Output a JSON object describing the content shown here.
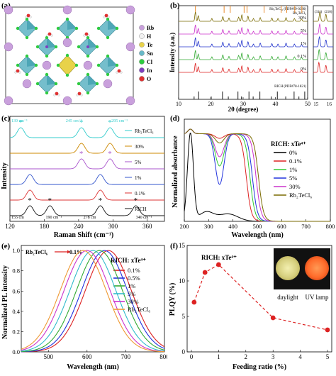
{
  "figure": {
    "panel_a": {
      "letter": "(a)",
      "legend": [
        {
          "label": "Rb",
          "color": "#c9a0dc"
        },
        {
          "label": "H",
          "color": "#f2f2f2"
        },
        {
          "label": "Te",
          "color": "#e8d24a"
        },
        {
          "label": "Sn",
          "color": "#67b8c7"
        },
        {
          "label": "Cl",
          "color": "#2ecc40"
        },
        {
          "label": "In",
          "color": "#7f3fbf"
        },
        {
          "label": "O",
          "color": "#e03030"
        }
      ]
    },
    "panel_b": {
      "letter": "(b)",
      "ylabel": "Intensity (a.u.)",
      "xlabel": "2θ (degree)",
      "ref_top": "Rb₂TeCl₆ (PDF#09-0380)",
      "ref_top2": "Rb₂TeCl₆",
      "ref_bottom": "RICH (PDF#78-1821)",
      "series": [
        "30%",
        "5%",
        "1%",
        "0.1%",
        "0%"
      ],
      "inset_labels": [
        "(311)",
        "(210)"
      ]
    },
    "panel_c": {
      "letter": "(c)",
      "ylabel": "Intensity",
      "xlabel": "Raman Shift (cm⁻¹)",
      "annot": [
        "139 cm⁻¹",
        "245 cm⁻¹",
        "295 cm⁻¹",
        "155 cm",
        "190 cm⁻¹",
        "278 cm",
        "340 cm⁻¹"
      ],
      "series": [
        "Rb₂TeCl₆",
        "30%",
        "5%",
        "1%",
        "0.1%",
        "RICH"
      ]
    },
    "panel_d": {
      "letter": "(d)",
      "ylabel": "Normalized absorbance",
      "xlabel": "Wavelength (nm)",
      "legend_title": "RICH: xTe⁴⁺",
      "series": [
        "0%",
        "0.1%",
        "1%",
        "5%",
        "30%",
        "Rb₂TeCl₆"
      ]
    },
    "panel_e": {
      "letter": "(e)",
      "ylabel": "Normalized PL intensity",
      "xlabel": "Wavelength (nm)",
      "legend_title": "RICH: xTe⁴⁺",
      "arrow_left": "Rb₂TeCl₆",
      "arrow_right": "0.1%",
      "series": [
        "0.1%",
        "0.5%",
        "1%",
        "5%",
        "30%",
        "Rb₂TeCl₆"
      ]
    },
    "panel_f": {
      "letter": "(f)",
      "ylabel": "PLQY (%)",
      "xlabel": "Feeding ratio (%)",
      "legend_title": "RICH: xTe⁴⁺",
      "photo_left": "daylight",
      "photo_right": "UV lamp"
    }
  },
  "chart_data": [
    {
      "type": "line",
      "panel": "b",
      "xlabel": "2θ (degree)",
      "ylabel": "Intensity (a.u.)",
      "xlim": [
        10,
        50
      ],
      "xticks": [
        10,
        20,
        30,
        40,
        50
      ],
      "series": [
        {
          "name": "30%",
          "color": "#7a6a00"
        },
        {
          "name": "5%",
          "color": "#cc33cc"
        },
        {
          "name": "1%",
          "color": "#2233cc"
        },
        {
          "name": "0.1%",
          "color": "#33aa33"
        },
        {
          "name": "0%",
          "color": "#dd2222"
        }
      ],
      "inset": {
        "xlim": [
          15,
          16
        ],
        "xticks": [
          15,
          16
        ]
      }
    },
    {
      "type": "line",
      "panel": "c",
      "xlabel": "Raman Shift (cm⁻¹)",
      "ylabel": "Intensity",
      "xlim": [
        120,
        390
      ],
      "xticks": [
        120,
        180,
        240,
        300,
        360
      ],
      "series": [
        {
          "name": "Rb₂TeCl₆",
          "color": "#33cccc",
          "peaks": [
            139,
            245,
            295
          ]
        },
        {
          "name": "30%",
          "color": "#cc8800",
          "peaks": [
            245,
            295
          ]
        },
        {
          "name": "5%",
          "color": "#aa55cc",
          "peaks": [
            245,
            295
          ]
        },
        {
          "name": "1%",
          "color": "#3355cc",
          "peaks": [
            155,
            278
          ]
        },
        {
          "name": "0.1%",
          "color": "#dd3333",
          "peaks": [
            155,
            278
          ]
        },
        {
          "name": "RICH",
          "color": "#111111",
          "peaks": [
            155,
            190,
            278,
            340
          ]
        }
      ]
    },
    {
      "type": "line",
      "panel": "d",
      "xlabel": "Wavelength (nm)",
      "ylabel": "Normalized absorbance",
      "xlim": [
        200,
        800
      ],
      "xticks": [
        200,
        300,
        400,
        500,
        600,
        700,
        800
      ],
      "series": [
        {
          "name": "0%",
          "color": "#000000"
        },
        {
          "name": "0.1%",
          "color": "#dd2222"
        },
        {
          "name": "1%",
          "color": "#33cc33"
        },
        {
          "name": "5%",
          "color": "#2233dd"
        },
        {
          "name": "30%",
          "color": "#cc33cc"
        },
        {
          "name": "Rb₂TeCl₆",
          "color": "#7a6a00"
        }
      ]
    },
    {
      "type": "line",
      "panel": "e",
      "xlabel": "Wavelength (nm)",
      "ylabel": "Normalized PL intensity",
      "xlim": [
        430,
        800
      ],
      "ylim": [
        0.0,
        1.05
      ],
      "xticks": [
        500,
        600,
        700,
        800
      ],
      "yticks": [
        0.0,
        0.2,
        0.4,
        0.6,
        0.8,
        1.0
      ],
      "series": [
        {
          "name": "0.1%",
          "color": "#dd2222",
          "peak": 655,
          "fwhm": 140
        },
        {
          "name": "0.5%",
          "color": "#2233dd",
          "peak": 645,
          "fwhm": 140
        },
        {
          "name": "1%",
          "color": "#33aa33",
          "peak": 632,
          "fwhm": 140
        },
        {
          "name": "5%",
          "color": "#33bbcc",
          "peak": 615,
          "fwhm": 140
        },
        {
          "name": "30%",
          "color": "#cc33cc",
          "peak": 600,
          "fwhm": 140
        },
        {
          "name": "Rb₂TeCl₆",
          "color": "#ee9933",
          "peak": 590,
          "fwhm": 140
        }
      ]
    },
    {
      "type": "line",
      "panel": "f",
      "xlabel": "Feeding ratio (%)",
      "ylabel": "PLQY (%)",
      "xlim": [
        0,
        5
      ],
      "ylim": [
        0,
        15
      ],
      "xticks": [
        0,
        1,
        2,
        3,
        4,
        5
      ],
      "yticks": [
        0,
        5,
        10,
        15
      ],
      "series": [
        {
          "name": "PLQY",
          "color": "#dd2222",
          "x": [
            0.1,
            0.5,
            1,
            3,
            5
          ],
          "y": [
            7.0,
            11.2,
            12.3,
            4.8,
            3.1
          ]
        }
      ]
    }
  ]
}
